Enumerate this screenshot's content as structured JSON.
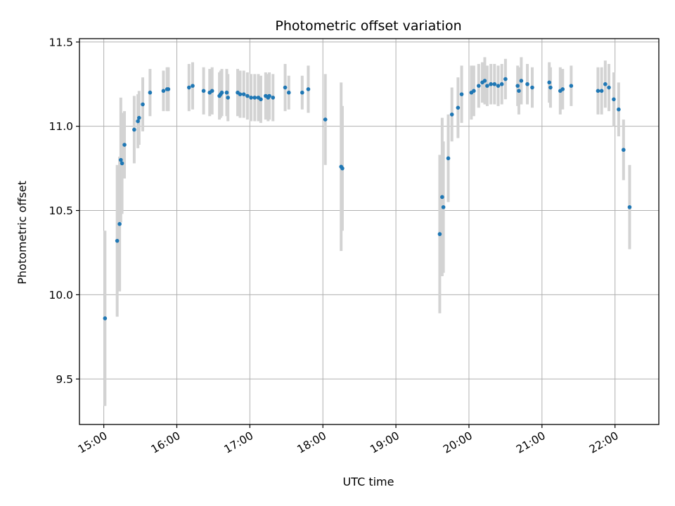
{
  "chart_data": {
    "type": "scatter",
    "title": "Photometric offset variation",
    "xlabel": "UTC time",
    "ylabel": "Photometric offset",
    "xlim": [
      "14:40",
      "22:36"
    ],
    "ylim": [
      9.23,
      11.52
    ],
    "x_ticks": [
      "15:00",
      "16:00",
      "17:00",
      "18:00",
      "19:00",
      "20:00",
      "21:00",
      "22:00"
    ],
    "y_ticks": [
      9.5,
      10.0,
      10.5,
      11.0,
      11.5
    ],
    "grid": true,
    "colors": {
      "point": "#1f77b4",
      "errorbar": "#d3d3d3",
      "grid": "#b0b0b0",
      "axis": "#000000"
    },
    "series": [
      {
        "x": [
          "15:01",
          "15:11",
          "15:13",
          "15:14",
          "15:15",
          "15:17",
          "15:25",
          "15:28",
          "15:29",
          "15:32",
          "15:38",
          "15:49",
          "15:52",
          "15:53",
          "16:10",
          "16:13",
          "16:22",
          "16:27",
          "16:29",
          "16:35",
          "16:36",
          "16:37",
          "16:41",
          "16:42",
          "16:50",
          "16:52",
          "16:55",
          "16:58",
          "17:01",
          "17:04",
          "17:07",
          "17:09",
          "17:13",
          "17:15",
          "17:16",
          "17:19",
          "17:29",
          "17:32",
          "17:43",
          "17:48",
          "18:02",
          "18:15",
          "18:16",
          "19:36",
          "19:38",
          "19:39",
          "19:43",
          "19:46",
          "19:51",
          "19:54",
          "20:02",
          "20:04",
          "20:08",
          "20:11",
          "20:13",
          "20:15",
          "20:18",
          "20:21",
          "20:24",
          "20:27",
          "20:30",
          "20:40",
          "20:41",
          "20:43",
          "20:48",
          "20:52",
          "21:06",
          "21:07",
          "21:15",
          "21:17",
          "21:24",
          "21:46",
          "21:49",
          "21:52",
          "21:55",
          "21:59",
          "22:03",
          "22:07",
          "22:12"
        ],
        "y": [
          9.86,
          10.32,
          10.42,
          10.8,
          10.78,
          10.89,
          10.98,
          11.03,
          11.05,
          11.13,
          11.2,
          11.21,
          11.22,
          11.22,
          11.23,
          11.24,
          11.21,
          11.2,
          11.21,
          11.18,
          11.19,
          11.2,
          11.2,
          11.17,
          11.2,
          11.19,
          11.19,
          11.18,
          11.17,
          11.17,
          11.17,
          11.16,
          11.18,
          11.17,
          11.18,
          11.17,
          11.23,
          11.2,
          11.2,
          11.22,
          11.04,
          10.76,
          10.75,
          10.36,
          10.58,
          10.52,
          10.81,
          11.07,
          11.11,
          11.19,
          11.2,
          11.21,
          11.24,
          11.26,
          11.27,
          11.24,
          11.25,
          11.25,
          11.24,
          11.25,
          11.28,
          11.24,
          11.21,
          11.27,
          11.25,
          11.23,
          11.26,
          11.23,
          11.21,
          11.22,
          11.24,
          11.21,
          11.21,
          11.25,
          11.23,
          11.16,
          11.1,
          10.86,
          10.52
        ],
        "err": [
          0.52,
          0.45,
          0.4,
          0.37,
          0.3,
          0.2,
          0.2,
          0.16,
          0.16,
          0.16,
          0.14,
          0.12,
          0.13,
          0.13,
          0.14,
          0.14,
          0.14,
          0.14,
          0.14,
          0.14,
          0.14,
          0.14,
          0.14,
          0.14,
          0.14,
          0.14,
          0.14,
          0.14,
          0.14,
          0.14,
          0.14,
          0.14,
          0.14,
          0.14,
          0.14,
          0.14,
          0.14,
          0.1,
          0.1,
          0.14,
          0.27,
          0.5,
          0.37,
          0.47,
          0.47,
          0.39,
          0.26,
          0.16,
          0.18,
          0.17,
          0.16,
          0.15,
          0.13,
          0.12,
          0.14,
          0.12,
          0.12,
          0.12,
          0.12,
          0.12,
          0.12,
          0.12,
          0.14,
          0.14,
          0.12,
          0.12,
          0.12,
          0.12,
          0.14,
          0.12,
          0.12,
          0.14,
          0.14,
          0.14,
          0.14,
          0.16,
          0.16,
          0.18,
          0.25
        ]
      }
    ]
  }
}
